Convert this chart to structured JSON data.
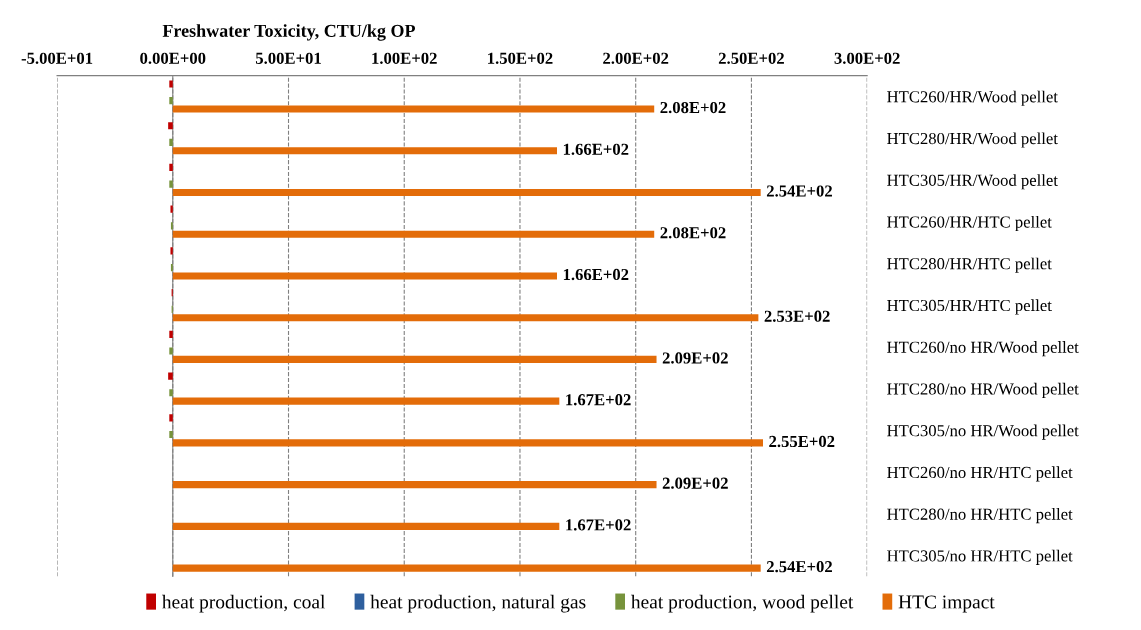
{
  "chart_data": {
    "type": "bar",
    "orientation": "horizontal",
    "title": "Freshwater Toxicity, CTU/kg OP",
    "categories": [
      "HTC260/HR/Wood pellet",
      "HTC280/HR/Wood pellet",
      "HTC305/HR/Wood pellet",
      "HTC260/HR/HTC pellet",
      "HTC280/HR/HTC pellet",
      "HTC305/HR/HTC pellet",
      "HTC260/no HR/Wood pellet",
      "HTC280/no HR/Wood pellet",
      "HTC305/no HR/Wood pellet",
      "HTC260/no HR/HTC pellet",
      "HTC280/no HR/HTC pellet",
      "HTC305/no HR/HTC pellet"
    ],
    "series": [
      {
        "name": "heat production, coal",
        "color": "#c00000",
        "values": [
          -1.5,
          -2,
          -1.5,
          -1,
          -1,
          -0.5,
          -1.5,
          -2,
          -1.5,
          0,
          0,
          0
        ]
      },
      {
        "name": "heat production, natural gas",
        "color": "#2e5f9e",
        "values": [
          0,
          0,
          0,
          0,
          0,
          0,
          0,
          0,
          0,
          0,
          0,
          0
        ]
      },
      {
        "name": "heat production, wood pellet",
        "color": "#77933c",
        "values": [
          -1.5,
          -1.5,
          -1.5,
          -0.8,
          -0.8,
          -0.5,
          -1.5,
          -1.5,
          -1.5,
          0,
          0,
          0
        ]
      },
      {
        "name": "HTC impact",
        "color": "#e36c09",
        "values": [
          208,
          166,
          254,
          208,
          166,
          253,
          209,
          167,
          255,
          209,
          167,
          254
        ],
        "value_labels": [
          "2.08E+02",
          "1.66E+02",
          "2.54E+02",
          "2.08E+02",
          "1.66E+02",
          "2.53E+02",
          "2.09E+02",
          "1.67E+02",
          "2.55E+02",
          "2.09E+02",
          "1.67E+02",
          "2.54E+02"
        ]
      }
    ],
    "xlim": [
      -50,
      300
    ],
    "xticks": [
      {
        "value": -50,
        "label": "-5.00E+01"
      },
      {
        "value": 0,
        "label": "0.00E+00"
      },
      {
        "value": 50,
        "label": "5.00E+01"
      },
      {
        "value": 100,
        "label": "1.00E+02"
      },
      {
        "value": 150,
        "label": "1.50E+02"
      },
      {
        "value": 200,
        "label": "2.00E+02"
      },
      {
        "value": 250,
        "label": "2.50E+02"
      },
      {
        "value": 300,
        "label": "3.00E+02"
      }
    ],
    "grid": "x",
    "legend": "bottom"
  }
}
